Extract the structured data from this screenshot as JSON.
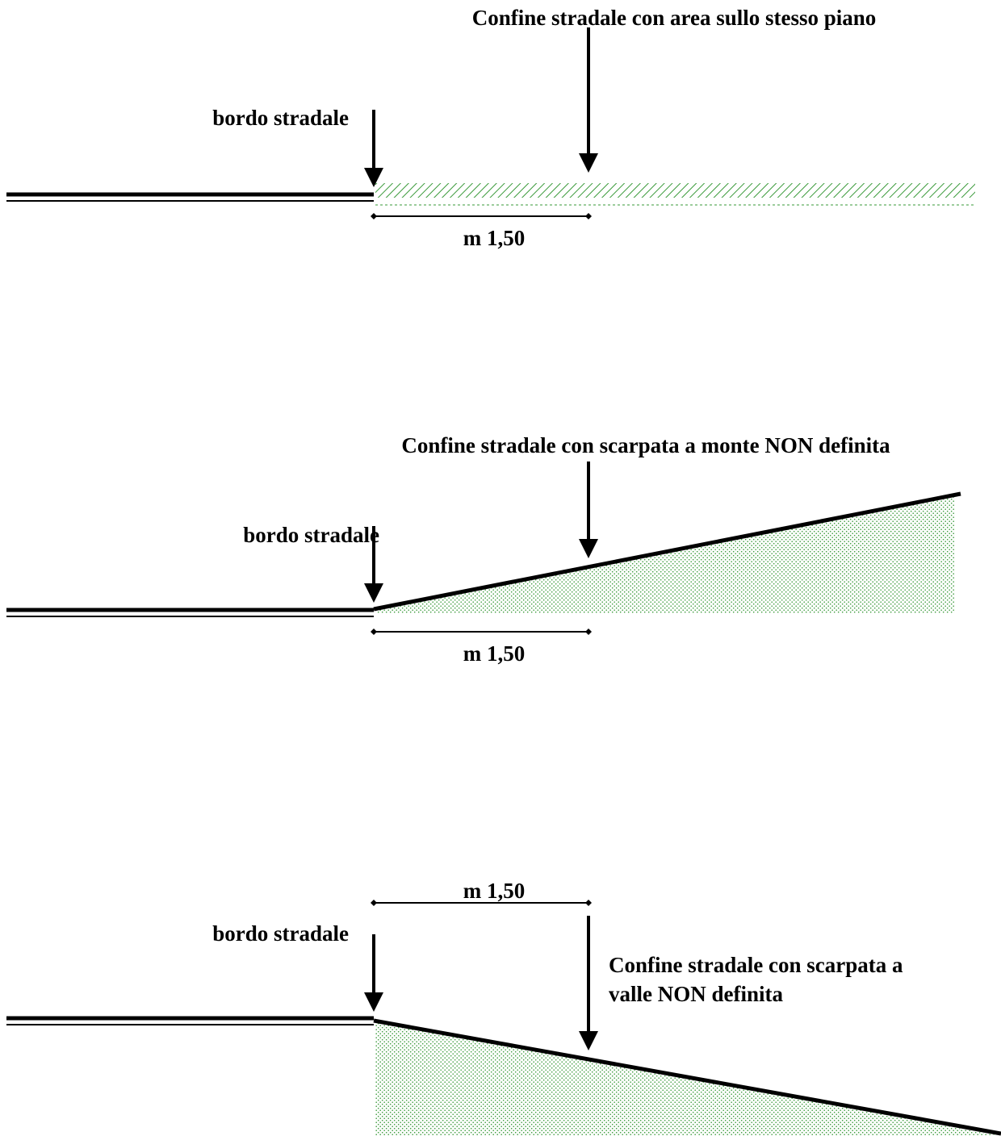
{
  "colors": {
    "stroke": "#000000",
    "ground": "#3a9a3a",
    "background": "#ffffff"
  },
  "panel_1": {
    "title": "Confine stradale con area sullo stesso piano",
    "edge_label": "bordo  stradale",
    "distance": "m 1,50"
  },
  "panel_2": {
    "title": "Confine stradale con scarpata a monte NON definita",
    "edge_label": "bordo  stradale",
    "distance": "m 1,50"
  },
  "panel_3": {
    "title_line_1": "Confine stradale con scarpata a",
    "title_line_2": "valle NON definita",
    "edge_label": "bordo  stradale",
    "distance": "m 1,50"
  }
}
